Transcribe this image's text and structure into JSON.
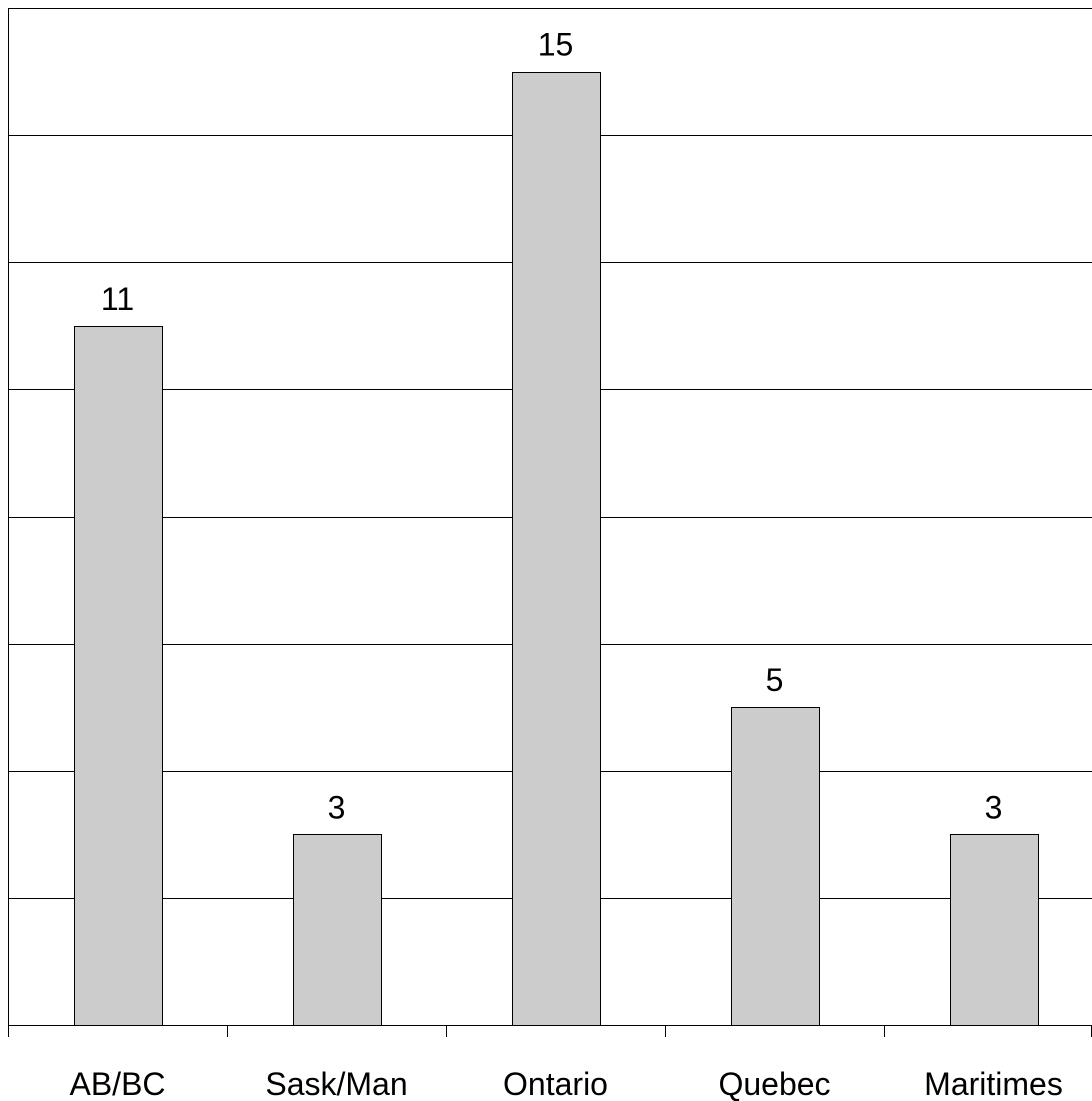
{
  "chart_data": {
    "type": "bar",
    "title": "",
    "xlabel": "",
    "ylabel": "",
    "categories": [
      "AB/BC",
      "Sask/Man",
      "Ontario",
      "Quebec",
      "Maritimes"
    ],
    "values": [
      11,
      3,
      15,
      5,
      3
    ],
    "ylim": [
      0,
      16
    ],
    "y_grid_step": 2,
    "grid": true,
    "legend": "none",
    "data_labels": true,
    "y_tick_labels_shown": false,
    "colors": {
      "bar_fill": "#cccccc",
      "bar_stroke": "#000000",
      "grid": "#000000",
      "background": "#ffffff"
    }
  }
}
